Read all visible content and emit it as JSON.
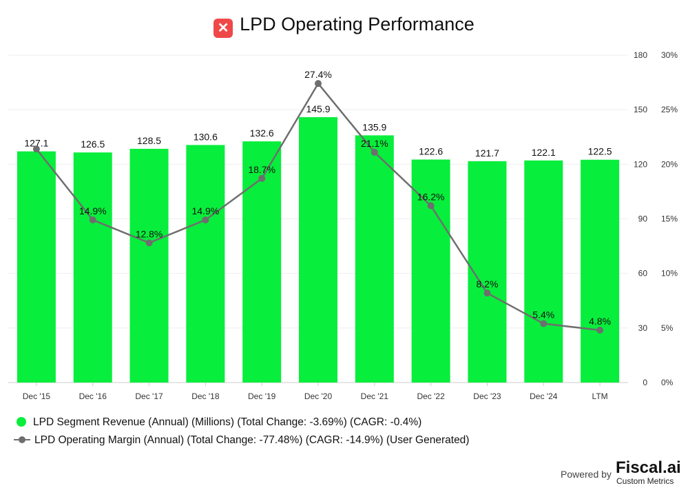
{
  "title": "LPD Operating Performance",
  "footer": {
    "powered_by": "Powered by",
    "brand": "Fiscal.ai",
    "brand_sub": "Custom Metrics"
  },
  "colors": {
    "bar": "#08ee3c",
    "line": "#6e6e6e",
    "logo": "#f04848"
  },
  "chart_data": {
    "type": "bar+line",
    "title": "LPD Operating Performance",
    "categories": [
      "Dec '15",
      "Dec '16",
      "Dec '17",
      "Dec '18",
      "Dec '19",
      "Dec '20",
      "Dec '21",
      "Dec '22",
      "Dec '23",
      "Dec '24",
      "LTM"
    ],
    "series": [
      {
        "name": "LPD Segment Revenue (Annual) (Millions) (Total Change: -3.69%) (CAGR: -0.4%)",
        "type": "bar",
        "axis": "left",
        "values": [
          127.1,
          126.5,
          128.5,
          130.6,
          132.6,
          145.9,
          135.9,
          122.6,
          121.7,
          122.1,
          122.5
        ],
        "labels": [
          "127.1",
          "126.5",
          "128.5",
          "130.6",
          "132.6",
          "145.9",
          "135.9",
          "122.6",
          "121.7",
          "122.1",
          "122.5"
        ]
      },
      {
        "name": "LPD Operating Margin (Annual) (Total Change: -77.48%) (CAGR: -14.9%) (User Generated)",
        "type": "line",
        "axis": "right",
        "values": [
          21.4,
          14.9,
          12.8,
          14.9,
          18.7,
          27.4,
          21.1,
          16.2,
          8.2,
          5.4,
          4.8
        ],
        "labels": [
          "",
          "14.9%",
          "12.8%",
          "14.9%",
          "18.7%",
          "27.4%",
          "21.1%",
          "16.2%",
          "8.2%",
          "5.4%",
          "4.8%"
        ]
      }
    ],
    "left_axis": {
      "ylim": [
        0,
        180
      ],
      "ticks": [
        "0",
        "30",
        "60",
        "90",
        "120",
        "150",
        "180"
      ]
    },
    "right_axis": {
      "ylim": [
        0,
        30
      ],
      "ticks": [
        "0%",
        "5%",
        "10%",
        "15%",
        "20%",
        "25%",
        "30%"
      ]
    },
    "grid": true,
    "legend_placement": "bottom-left"
  }
}
